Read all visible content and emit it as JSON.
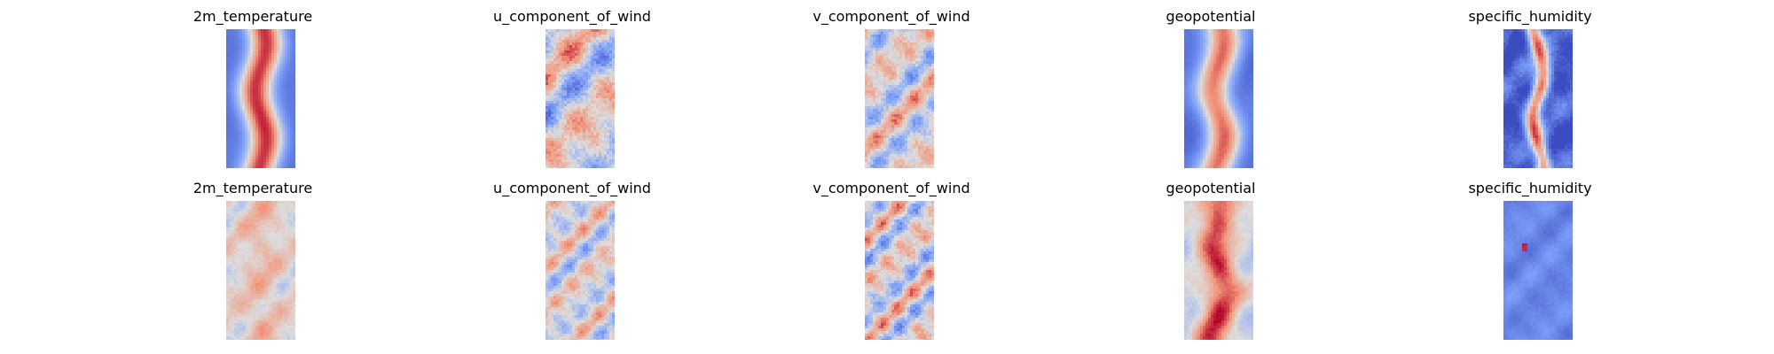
{
  "figure": {
    "rows": [
      {
        "panels": [
          {
            "title": "2m_temperature",
            "pattern": "band",
            "intensity": 0.95,
            "noise": 0.1,
            "scale": 0.22
          },
          {
            "title": "u_component_of_wind",
            "pattern": "noise",
            "intensity": 0.75,
            "noise": 0.85,
            "scale": 0.3
          },
          {
            "title": "v_component_of_wind",
            "pattern": "noise",
            "intensity": 0.65,
            "noise": 0.9,
            "scale": 0.45
          },
          {
            "title": "geopotential",
            "pattern": "band",
            "intensity": 0.8,
            "noise": 0.2,
            "scale": 0.25
          },
          {
            "title": "specific_humidity",
            "pattern": "core",
            "intensity": 0.9,
            "noise": 0.6,
            "scale": 0.4
          }
        ]
      },
      {
        "panels": [
          {
            "title": "2m_temperature",
            "pattern": "warm",
            "intensity": 0.45,
            "noise": 0.5,
            "scale": 0.45
          },
          {
            "title": "u_component_of_wind",
            "pattern": "noise",
            "intensity": 0.55,
            "noise": 0.95,
            "scale": 0.55
          },
          {
            "title": "v_component_of_wind",
            "pattern": "noise",
            "intensity": 0.7,
            "noise": 0.95,
            "scale": 0.55
          },
          {
            "title": "geopotential",
            "pattern": "warmband",
            "intensity": 0.8,
            "noise": 0.5,
            "scale": 0.4
          },
          {
            "title": "specific_humidity",
            "pattern": "cold",
            "intensity": 0.85,
            "noise": 0.35,
            "scale": 0.45
          }
        ]
      }
    ],
    "colormap": "coolwarm"
  }
}
